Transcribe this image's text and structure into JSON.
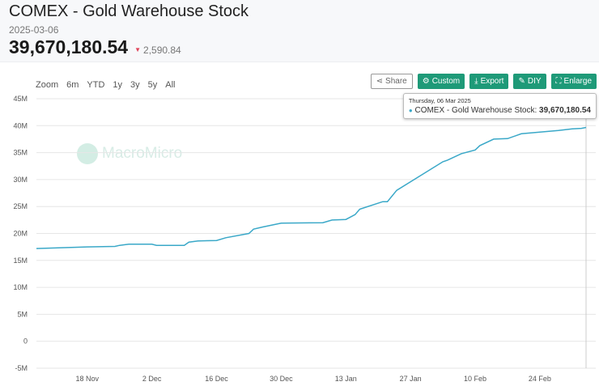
{
  "header": {
    "title": "COMEX - Gold Warehouse Stock",
    "date": "2025-03-06",
    "value": "39,670,180.54",
    "change": "2,590.84",
    "change_direction": "down",
    "change_color": "#e0455a"
  },
  "ranges": [
    "Zoom",
    "6m",
    "YTD",
    "1y",
    "3y",
    "5y",
    "All"
  ],
  "toolbar": {
    "share": "Share",
    "custom": "Custom",
    "export": "Export",
    "diy": "DIY",
    "enlarge": "Enlarge",
    "accent": "#1e9a78"
  },
  "watermark": "MacroMicro",
  "tooltip": {
    "date": "Thursday, 06 Mar 2025",
    "series": "COMEX - Gold Warehouse Stock:",
    "value": "39,670,180.54"
  },
  "chart_data": {
    "type": "line",
    "title": "",
    "xlabel": "",
    "ylabel": "",
    "ylim": [
      -5000000,
      45000000
    ],
    "yticks": [
      -5000000,
      0,
      5000000,
      10000000,
      15000000,
      20000000,
      25000000,
      30000000,
      35000000,
      40000000,
      45000000
    ],
    "ytick_labels": [
      "-5M",
      "0",
      "5M",
      "10M",
      "15M",
      "20M",
      "25M",
      "30M",
      "35M",
      "40M",
      "45M"
    ],
    "xlim": [
      "2024-11-07",
      "2025-03-08"
    ],
    "xticks": [
      "2024-11-18",
      "2024-12-02",
      "2024-12-16",
      "2024-12-30",
      "2025-01-13",
      "2025-01-27",
      "2025-02-10",
      "2025-02-24"
    ],
    "xtick_labels": [
      "18 Nov",
      "2 Dec",
      "16 Dec",
      "30 Dec",
      "13 Jan",
      "27 Jan",
      "10 Feb",
      "24 Feb"
    ],
    "grid": true,
    "color": "#3aa8c8",
    "series": [
      {
        "x": [
          "2024-11-07",
          "2024-11-18",
          "2024-11-24",
          "2024-11-25",
          "2024-11-27",
          "2024-12-02",
          "2024-12-03",
          "2024-12-09",
          "2024-12-10",
          "2024-12-12",
          "2024-12-16",
          "2024-12-18",
          "2024-12-23",
          "2024-12-24",
          "2024-12-26",
          "2024-12-30",
          "2025-01-08",
          "2025-01-10",
          "2025-01-13",
          "2025-01-15",
          "2025-01-16",
          "2025-01-21",
          "2025-01-22",
          "2025-01-24",
          "2025-02-03",
          "2025-02-04",
          "2025-02-07",
          "2025-02-10",
          "2025-02-11",
          "2025-02-14",
          "2025-02-17",
          "2025-02-20",
          "2025-02-24",
          "2025-02-28",
          "2025-03-03",
          "2025-03-05",
          "2025-03-06"
        ],
        "values": [
          17200000,
          17500000,
          17600000,
          17800000,
          18000000,
          18000000,
          17800000,
          17800000,
          18400000,
          18600000,
          18700000,
          19200000,
          20000000,
          20800000,
          21200000,
          21900000,
          22000000,
          22500000,
          22600000,
          23500000,
          24500000,
          25900000,
          25900000,
          28000000,
          33300000,
          33600000,
          34800000,
          35500000,
          36300000,
          37500000,
          37600000,
          38500000,
          38800000,
          39100000,
          39400000,
          39500000,
          39670180.54
        ]
      }
    ]
  }
}
